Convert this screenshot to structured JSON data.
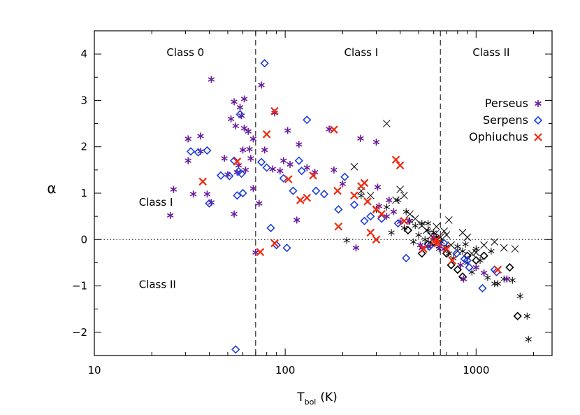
{
  "chart_data": {
    "type": "scatter",
    "xscale": "log",
    "xlim": [
      10,
      2500
    ],
    "ylim": [
      -2.5,
      4.5
    ],
    "xlabel_main": "T",
    "xlabel_sub": "bol",
    "xlabel_unit": "(K)",
    "ylabel": "α",
    "x_tick_labels": [
      {
        "value": 10,
        "label": "10"
      },
      {
        "value": 100,
        "label": "100"
      },
      {
        "value": 1000,
        "label": "1000"
      }
    ],
    "y_tick_labels": [
      {
        "value": -2,
        "label": "−2"
      },
      {
        "value": -1,
        "label": "−1"
      },
      {
        "value": 0,
        "label": "0"
      },
      {
        "value": 1,
        "label": "1"
      },
      {
        "value": 2,
        "label": "2"
      },
      {
        "value": 3,
        "label": "3"
      },
      {
        "value": 4,
        "label": "4"
      }
    ],
    "vlines": [
      70,
      650
    ],
    "hline": 0,
    "region_labels": [
      {
        "text": "Class 0",
        "x": 30,
        "y": 4.05
      },
      {
        "text": "Class I",
        "x": 250,
        "y": 4.05
      },
      {
        "text": "Class II",
        "x": 1200,
        "y": 4.05
      },
      {
        "text": "Class I",
        "x": 18,
        "y": 0.82
      },
      {
        "text": "Class II",
        "x": 18,
        "y": -0.95
      }
    ],
    "legend": {
      "position": "right",
      "entries": [
        {
          "name": "Perseus",
          "marker": "asterisk",
          "color": "#6a1b9a"
        },
        {
          "name": "Serpens",
          "marker": "diamond",
          "color": "#1f3fe0"
        },
        {
          "name": "Ophiuchus",
          "marker": "cross",
          "color": "#f02a10"
        }
      ]
    },
    "series": [
      {
        "name": "Perseus",
        "marker": "asterisk",
        "color": "#6a1b9a",
        "points": [
          [
            25,
            0.52
          ],
          [
            26,
            1.08
          ],
          [
            31,
            2.17
          ],
          [
            31,
            1.7
          ],
          [
            33,
            0.98
          ],
          [
            36,
            2.23
          ],
          [
            36,
            1.9
          ],
          [
            39,
            0.98
          ],
          [
            41,
            3.45
          ],
          [
            41,
            0.8
          ],
          [
            48,
            1.75
          ],
          [
            50,
            1.4
          ],
          [
            52,
            2.6
          ],
          [
            54,
            2.97
          ],
          [
            54,
            0.55
          ],
          [
            55,
            2.45
          ],
          [
            56,
            1.45
          ],
          [
            57,
            1.6
          ],
          [
            58,
            2.85
          ],
          [
            59,
            2.67
          ],
          [
            60,
            1.93
          ],
          [
            61,
            2.4
          ],
          [
            61,
            3.03
          ],
          [
            62,
            1.5
          ],
          [
            64,
            2.33
          ],
          [
            65,
            1.95
          ],
          [
            66,
            1.75
          ],
          [
            68,
            2.17
          ],
          [
            68,
            1.1
          ],
          [
            70,
            -0.28
          ],
          [
            73,
            0.78
          ],
          [
            75,
            3.33
          ],
          [
            78,
            1.93
          ],
          [
            86,
            1.52
          ],
          [
            88,
            2.73
          ],
          [
            94,
            1.48
          ],
          [
            98,
            1.7
          ],
          [
            103,
            2.35
          ],
          [
            106,
            1.62
          ],
          [
            115,
            0.42
          ],
          [
            118,
            2.05
          ],
          [
            130,
            1.55
          ],
          [
            143,
            1.45
          ],
          [
            170,
            2.38
          ],
          [
            180,
            1.5
          ],
          [
            200,
            1.2
          ],
          [
            235,
            -0.18
          ],
          [
            248,
            2.18
          ],
          [
            300,
            2.1
          ],
          [
            305,
            1.13
          ],
          [
            310,
            0.72
          ],
          [
            340,
            0.5
          ],
          [
            350,
            0.85
          ],
          [
            370,
            0.6
          ],
          [
            400,
            0.38
          ],
          [
            445,
            0.4
          ],
          [
            510,
            -0.12
          ],
          [
            520,
            -0.18
          ],
          [
            560,
            -0.15
          ],
          [
            600,
            0.05
          ],
          [
            640,
            -0.15
          ],
          [
            680,
            -0.2
          ],
          [
            830,
            -0.55
          ],
          [
            860,
            -0.85
          ],
          [
            1000,
            -0.6
          ],
          [
            1100,
            -0.72
          ],
          [
            1450,
            -0.85
          ]
        ]
      },
      {
        "name": "Serpens",
        "marker": "diamond",
        "color": "#1f3fe0",
        "points": [
          [
            32,
            1.9
          ],
          [
            35,
            1.88
          ],
          [
            39,
            1.92
          ],
          [
            40,
            0.78
          ],
          [
            46,
            1.38
          ],
          [
            51,
            1.37
          ],
          [
            54,
            1.7
          ],
          [
            55,
            -2.37
          ],
          [
            56,
            0.95
          ],
          [
            57,
            1.47
          ],
          [
            58,
            2.7
          ],
          [
            59,
            1.42
          ],
          [
            60,
            1.0
          ],
          [
            75,
            1.67
          ],
          [
            78,
            3.8
          ],
          [
            80,
            1.55
          ],
          [
            84,
            0.25
          ],
          [
            90,
            -0.12
          ],
          [
            98,
            1.32
          ],
          [
            102,
            -0.18
          ],
          [
            110,
            1.05
          ],
          [
            118,
            1.7
          ],
          [
            122,
            1.48
          ],
          [
            130,
            2.58
          ],
          [
            145,
            1.05
          ],
          [
            160,
            0.98
          ],
          [
            190,
            0.65
          ],
          [
            205,
            1.35
          ],
          [
            230,
            0.75
          ],
          [
            260,
            0.4
          ],
          [
            280,
            0.5
          ],
          [
            320,
            0.45
          ],
          [
            390,
            0.35
          ],
          [
            430,
            -0.4
          ],
          [
            570,
            -0.15
          ],
          [
            680,
            -0.08
          ],
          [
            790,
            -0.3
          ],
          [
            870,
            -0.42
          ],
          [
            900,
            -0.45
          ],
          [
            920,
            -0.6
          ],
          [
            1080,
            -1.05
          ],
          [
            1250,
            -0.65
          ],
          [
            1280,
            -0.7
          ]
        ]
      },
      {
        "name": "Ophiuchus",
        "marker": "cross",
        "color": "#f02a10",
        "points": [
          [
            37,
            1.25
          ],
          [
            56,
            1.68
          ],
          [
            74,
            -0.27
          ],
          [
            80,
            2.27
          ],
          [
            88,
            -0.08
          ],
          [
            88,
            2.77
          ],
          [
            104,
            1.3
          ],
          [
            120,
            0.85
          ],
          [
            130,
            0.9
          ],
          [
            140,
            1.38
          ],
          [
            180,
            2.37
          ],
          [
            188,
            1.05
          ],
          [
            190,
            0.28
          ],
          [
            230,
            0.95
          ],
          [
            250,
            1.15
          ],
          [
            260,
            1.22
          ],
          [
            270,
            0.82
          ],
          [
            280,
            0.15
          ],
          [
            300,
            0.65
          ],
          [
            300,
            0.0
          ],
          [
            320,
            0.55
          ],
          [
            380,
            1.72
          ],
          [
            400,
            1.6
          ],
          [
            420,
            0.4
          ],
          [
            530,
            -0.2
          ],
          [
            600,
            -0.05
          ],
          [
            620,
            0.0
          ],
          [
            630,
            -0.08
          ],
          [
            700,
            -0.2
          ],
          [
            750,
            -0.45
          ],
          [
            1300,
            -0.65
          ]
        ]
      },
      {
        "name": "",
        "marker": "cross",
        "color": "#000000",
        "points": [
          [
            230,
            1.57
          ],
          [
            250,
            1.05
          ],
          [
            280,
            0.95
          ],
          [
            340,
            2.5
          ],
          [
            380,
            0.85
          ],
          [
            400,
            1.08
          ],
          [
            420,
            0.95
          ],
          [
            450,
            0.55
          ],
          [
            480,
            0.45
          ],
          [
            520,
            0.3
          ],
          [
            550,
            0.2
          ],
          [
            580,
            0.08
          ],
          [
            610,
            0.12
          ],
          [
            620,
            0.28
          ],
          [
            650,
            0.05
          ],
          [
            680,
            0.18
          ],
          [
            700,
            0.1
          ],
          [
            720,
            0.42
          ],
          [
            740,
            -0.12
          ],
          [
            800,
            -0.25
          ],
          [
            850,
            0.15
          ],
          [
            900,
            0.05
          ],
          [
            950,
            -0.3
          ],
          [
            1000,
            -0.28
          ],
          [
            1100,
            -0.12
          ],
          [
            1250,
            -0.05
          ],
          [
            1400,
            -0.18
          ],
          [
            1600,
            -0.2
          ]
        ]
      },
      {
        "name": "",
        "marker": "asterisk",
        "color": "#000000",
        "points": [
          [
            210,
            -0.02
          ],
          [
            250,
            0.95
          ],
          [
            300,
            0.65
          ],
          [
            340,
            0.7
          ],
          [
            360,
            0.15
          ],
          [
            390,
            0.85
          ],
          [
            420,
            0.25
          ],
          [
            450,
            0.4
          ],
          [
            480,
            0.3
          ],
          [
            500,
            0.1
          ],
          [
            520,
            0.35
          ],
          [
            540,
            0.0
          ],
          [
            560,
            0.2
          ],
          [
            580,
            -0.1
          ],
          [
            600,
            0.15
          ],
          [
            620,
            0.05
          ],
          [
            640,
            -0.2
          ],
          [
            660,
            -0.05
          ],
          [
            700,
            -0.15
          ],
          [
            720,
            -0.3
          ],
          [
            760,
            -0.4
          ],
          [
            800,
            -0.15
          ],
          [
            850,
            -0.25
          ],
          [
            880,
            -0.1
          ],
          [
            900,
            -0.5
          ],
          [
            950,
            -0.7
          ],
          [
            1050,
            -0.45
          ],
          [
            1150,
            -0.82
          ],
          [
            1200,
            -0.25
          ],
          [
            1300,
            -0.95
          ],
          [
            1400,
            -0.85
          ],
          [
            1550,
            -0.88
          ],
          [
            1700,
            -1.22
          ],
          [
            1850,
            -1.65
          ],
          [
            1880,
            -2.15
          ],
          [
            1000,
            -0.2
          ],
          [
            1250,
            -0.95
          ],
          [
            560,
            0.35
          ],
          [
            470,
            -0.05
          ],
          [
            430,
            0.6
          ]
        ]
      },
      {
        "name": "",
        "marker": "diamond",
        "color": "#000000",
        "points": [
          [
            440,
            0.2
          ],
          [
            520,
            -0.3
          ],
          [
            560,
            -0.1
          ],
          [
            600,
            -0.05
          ],
          [
            640,
            0.0
          ],
          [
            700,
            -0.3
          ],
          [
            740,
            -0.55
          ],
          [
            800,
            -0.65
          ],
          [
            850,
            -0.8
          ],
          [
            900,
            -0.35
          ],
          [
            1000,
            -0.45
          ],
          [
            1100,
            -0.35
          ],
          [
            1500,
            -0.6
          ],
          [
            1650,
            -1.65
          ]
        ]
      }
    ]
  }
}
